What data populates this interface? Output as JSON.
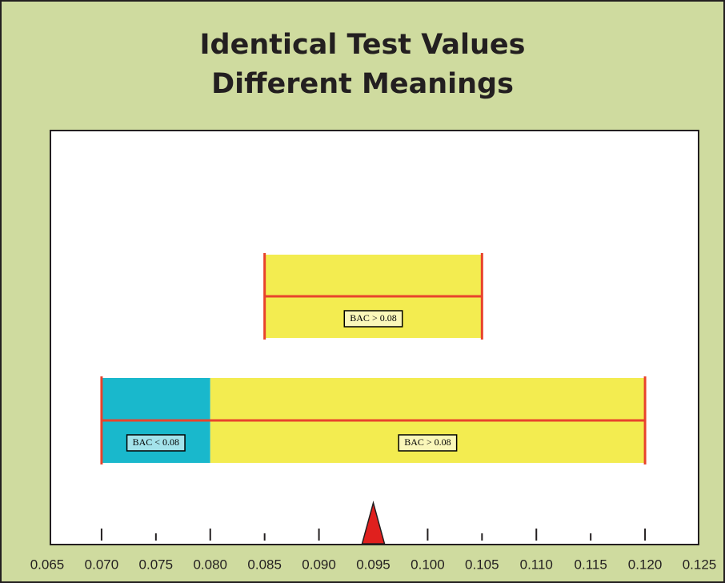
{
  "chart_data": {
    "type": "interval",
    "title": [
      "Identical Test Values",
      "Different Meanings"
    ],
    "xlim": [
      0.065,
      0.125
    ],
    "xticks": [
      {
        "value": 0.065,
        "label": "0.065"
      },
      {
        "value": 0.07,
        "label": "0.070"
      },
      {
        "value": 0.075,
        "label": "0.075"
      },
      {
        "value": 0.08,
        "label": "0.080"
      },
      {
        "value": 0.085,
        "label": "0.085"
      },
      {
        "value": 0.09,
        "label": "0.090"
      },
      {
        "value": 0.095,
        "label": "0.095"
      },
      {
        "value": 0.1,
        "label": "0.100"
      },
      {
        "value": 0.105,
        "label": "0.105"
      },
      {
        "value": 0.11,
        "label": "0.110"
      },
      {
        "value": 0.115,
        "label": "0.115"
      },
      {
        "value": 0.12,
        "label": "0.120"
      },
      {
        "value": 0.125,
        "label": "0.125"
      }
    ],
    "intervals": [
      {
        "low": 0.085,
        "high": 0.105,
        "segments": [
          {
            "start": 0.085,
            "end": 0.105,
            "color": "#f3ec50",
            "label": "BAC > 0.08"
          }
        ]
      },
      {
        "low": 0.07,
        "high": 0.12,
        "segments": [
          {
            "start": 0.07,
            "end": 0.08,
            "color": "#19b8cc",
            "label": "BAC < 0.08"
          },
          {
            "start": 0.08,
            "end": 0.12,
            "color": "#f3ec50",
            "label": "BAC > 0.08"
          }
        ]
      }
    ],
    "line_color": "#e8432c",
    "marker": 0.095,
    "marker_color": "#e0201e"
  }
}
